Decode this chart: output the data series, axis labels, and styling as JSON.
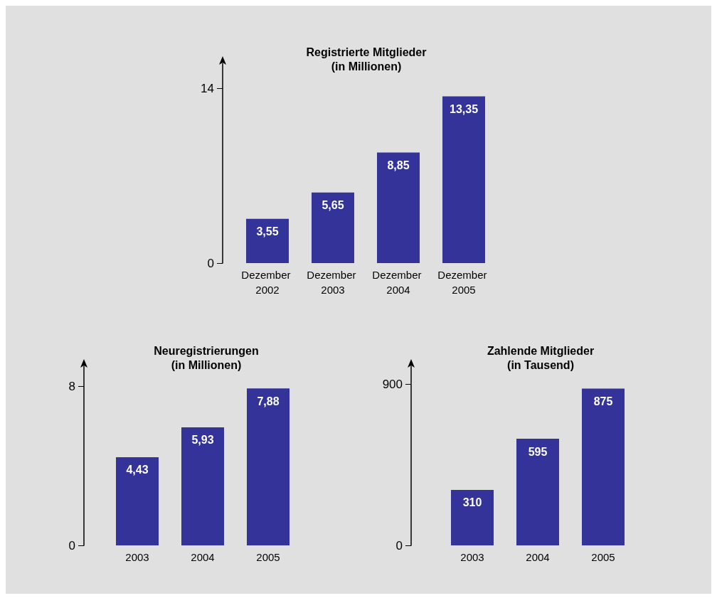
{
  "chart_data": [
    {
      "type": "bar",
      "title": "Registrierte Mitglieder",
      "subtitle": "(in Millionen)",
      "categories": [
        "Dezember 2002",
        "Dezember 2003",
        "Dezember 2004",
        "Dezember 2005"
      ],
      "values": [
        3.55,
        5.65,
        8.85,
        13.35
      ],
      "value_labels": [
        "3,55",
        "5,65",
        "8,85",
        "13,35"
      ],
      "color": "#333399",
      "ylim": [
        0,
        16
      ],
      "yticks": [
        0,
        14
      ]
    },
    {
      "type": "bar",
      "title": "Neuregistrierungen",
      "subtitle": "(in Millionen)",
      "categories": [
        "2003",
        "2004",
        "2005"
      ],
      "values": [
        4.43,
        5.93,
        7.88
      ],
      "value_labels": [
        "4,43",
        "5,93",
        "7,88"
      ],
      "color": "#333399",
      "ylim": [
        0,
        9
      ],
      "yticks": [
        0,
        8
      ]
    },
    {
      "type": "bar",
      "title": "Zahlende Mitglieder",
      "subtitle": "(in Tausend)",
      "categories": [
        "2003",
        "2004",
        "2005"
      ],
      "values": [
        310,
        595,
        875
      ],
      "value_labels": [
        "310",
        "595",
        "875"
      ],
      "color": "#333399",
      "ylim": [
        0,
        1000
      ],
      "yticks": [
        0,
        900
      ]
    }
  ]
}
